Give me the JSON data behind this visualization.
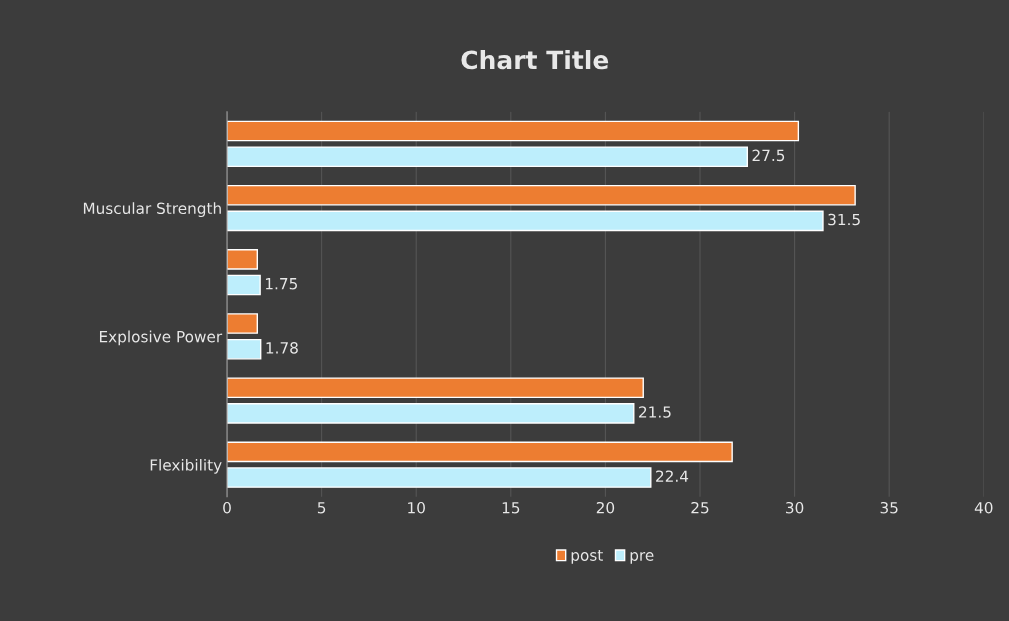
{
  "chart_data": {
    "type": "bar",
    "orientation": "horizontal",
    "title": "Chart Title",
    "categories": [
      null,
      "Muscular Strength",
      null,
      "Explosive Power",
      null,
      "Flexibility"
    ],
    "series": [
      {
        "name": "post",
        "color": "#ed7d31",
        "values": [
          30.2,
          33.2,
          1.6,
          1.6,
          22.0,
          26.7
        ]
      },
      {
        "name": "pre",
        "color": "#bdeefc",
        "values": [
          27.5,
          31.5,
          1.75,
          1.78,
          21.5,
          22.4
        ],
        "value_labels": [
          "27.5",
          "31.5",
          "1.75",
          "1.78",
          "21.5",
          "22.4"
        ]
      }
    ],
    "xlim": [
      0,
      40
    ],
    "xticks": [
      0,
      5,
      10,
      15,
      20,
      25,
      30,
      35,
      40
    ],
    "grid": "x",
    "legend": "bottom"
  }
}
